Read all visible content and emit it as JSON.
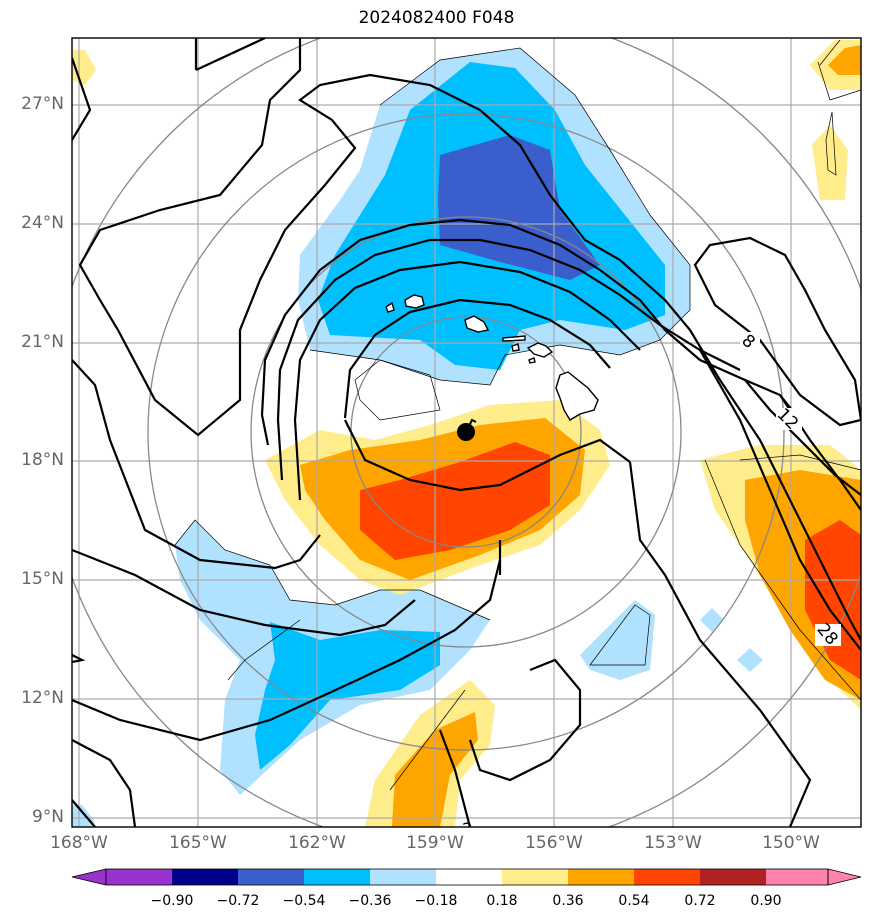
{
  "title": "2024082400 F048",
  "map": {
    "lat_labels": [
      "27°N",
      "24°N",
      "21°N",
      "18°N",
      "15°N",
      "12°N",
      "9°N"
    ],
    "lon_labels": [
      "168°W",
      "165°W",
      "162°W",
      "159°W",
      "156°W",
      "153°W",
      "150°W"
    ],
    "contour_labels": [
      "8",
      "12",
      "28",
      "2"
    ],
    "storm_marker": "black-dot"
  },
  "colorbar": {
    "ticks": [
      "−0.90",
      "−0.72",
      "−0.54",
      "−0.36",
      "−0.18",
      "0.18",
      "0.36",
      "0.54",
      "0.72",
      "0.90"
    ],
    "colors": [
      "#9a32cd",
      "#00008b",
      "#3a5fcd",
      "#00bfff",
      "#b0e2ff",
      "#ffffff",
      "#ffec8b",
      "#ffa500",
      "#ff4500",
      "#b22222",
      "#ff82ab"
    ]
  },
  "colors": {
    "neg_strong": "#3a5fcd",
    "neg_mid": "#00bfff",
    "neg_weak": "#b0e2ff",
    "pos_weak": "#ffec8b",
    "pos_mid": "#ffa500",
    "pos_strong": "#ff4500"
  }
}
